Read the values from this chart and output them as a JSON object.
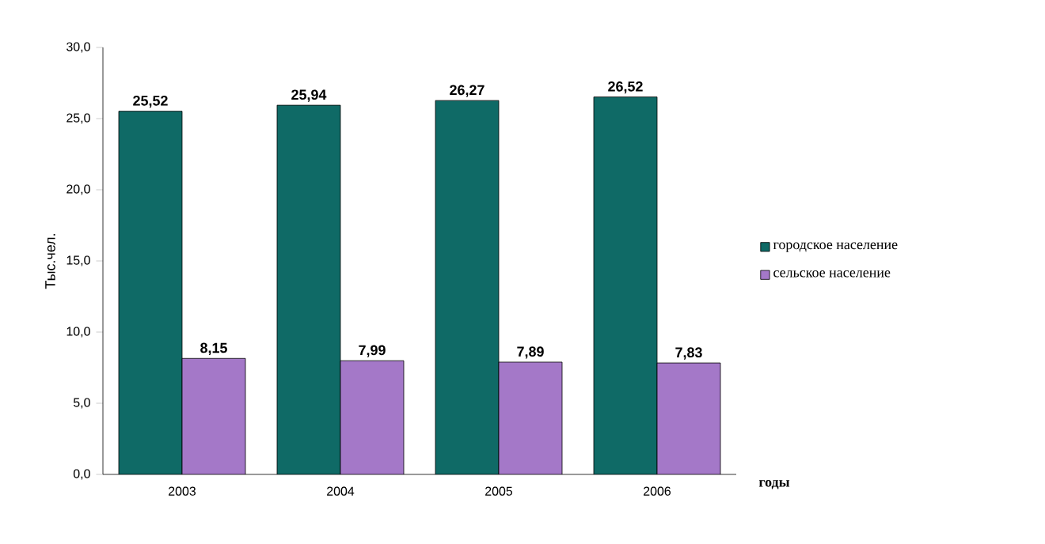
{
  "chart_data": {
    "type": "bar",
    "ylabel": "Тыс.чел.",
    "xlabel": "годы",
    "categories": [
      "2003",
      "2004",
      "2005",
      "2006"
    ],
    "series": [
      {
        "name": "городское население",
        "color": "#0f6a66",
        "values": [
          25.52,
          25.94,
          26.27,
          26.52
        ],
        "value_labels": [
          "25,52",
          "25,94",
          "26,27",
          "26,52"
        ]
      },
      {
        "name": "сельское население",
        "color": "#a478c8",
        "values": [
          8.15,
          7.99,
          7.89,
          7.83
        ],
        "value_labels": [
          "8,15",
          "7,99",
          "7,89",
          "7,83"
        ]
      }
    ],
    "ylim": [
      0,
      30
    ],
    "yticks": [
      {
        "value": 0,
        "label": "0,0"
      },
      {
        "value": 5,
        "label": "5,0"
      },
      {
        "value": 10,
        "label": "10,0"
      },
      {
        "value": 15,
        "label": "15,0"
      },
      {
        "value": 20,
        "label": "20,0"
      },
      {
        "value": 25,
        "label": "25,0"
      },
      {
        "value": 30,
        "label": "30,0"
      }
    ],
    "legend": "right"
  }
}
